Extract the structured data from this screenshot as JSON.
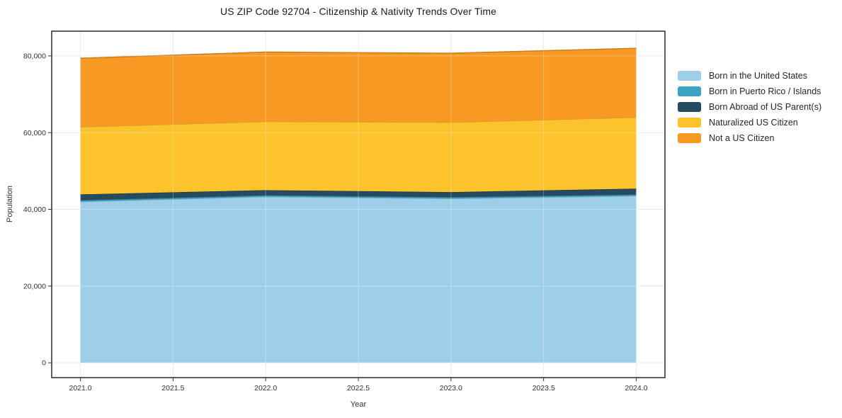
{
  "chart_data": {
    "type": "area",
    "stacked": true,
    "title": "US ZIP Code 92704 - Citizenship & Nativity Trends Over Time",
    "xlabel": "Year",
    "ylabel": "Population",
    "x": [
      2021,
      2022,
      2023,
      2024
    ],
    "series": [
      {
        "name": "Born in the United States",
        "key": "born-in-us",
        "color": "#9FCFE8",
        "values": [
          42000,
          43300,
          42800,
          43500
        ]
      },
      {
        "name": "Born in Puerto Rico / Islands",
        "key": "born-pr-islands",
        "color": "#3AA3C2",
        "values": [
          350,
          350,
          350,
          350
        ]
      },
      {
        "name": "Born Abroad of US Parent(s)",
        "key": "born-abroad",
        "color": "#264A5E",
        "values": [
          1550,
          1350,
          1350,
          1550
        ]
      },
      {
        "name": "Naturalized US Citizen",
        "key": "naturalized",
        "color": "#FDC32D",
        "values": [
          17600,
          17900,
          18200,
          18600
        ]
      },
      {
        "name": "Not a US Citizen",
        "key": "not-citizen",
        "color": "#F89923",
        "values": [
          17900,
          18100,
          18000,
          18000
        ]
      }
    ],
    "x_ticks": [
      {
        "v": 2021.0,
        "label": "2021.0"
      },
      {
        "v": 2021.5,
        "label": "2021.5"
      },
      {
        "v": 2022.0,
        "label": "2022.0"
      },
      {
        "v": 2022.5,
        "label": "2022.5"
      },
      {
        "v": 2023.0,
        "label": "2023.0"
      },
      {
        "v": 2023.5,
        "label": "2023.5"
      },
      {
        "v": 2024.0,
        "label": "2024.0"
      }
    ],
    "y_ticks": [
      {
        "v": 0,
        "label": "0"
      },
      {
        "v": 20000,
        "label": "20,000"
      },
      {
        "v": 40000,
        "label": "40,000"
      },
      {
        "v": 60000,
        "label": "60,000"
      },
      {
        "v": 80000,
        "label": "80,000"
      }
    ],
    "xlim": [
      2020.845,
      2024.155
    ],
    "ylim": [
      -3870,
      86450
    ],
    "grid": true,
    "legend_position": "right",
    "colors": {
      "grid": "#e4e4e4",
      "grid_overlay": "rgba(255,255,255,0.30)",
      "spine": "#2a2a2a",
      "tick": "#333333"
    }
  }
}
